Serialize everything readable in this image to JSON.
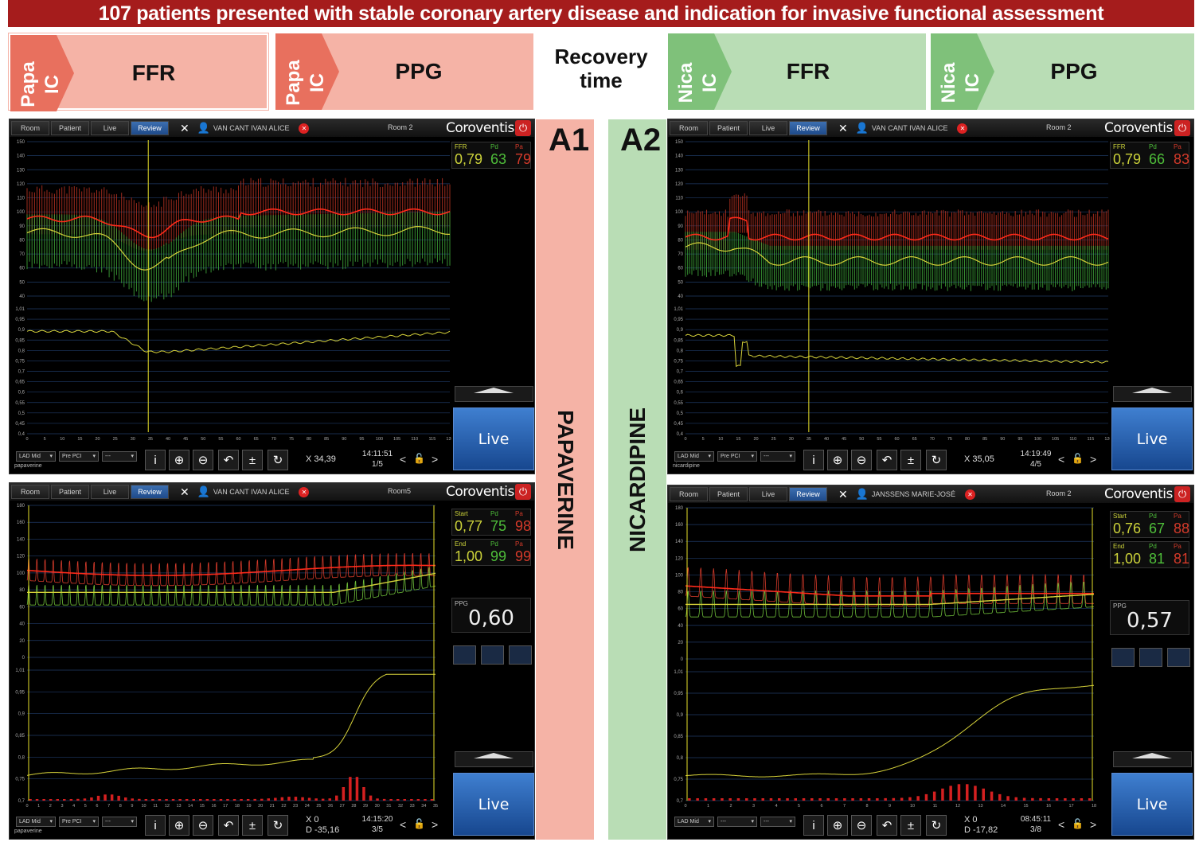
{
  "title": "107 patients presented with stable coronary artery disease and indication for invasive functional assessment",
  "steps": [
    {
      "tag": "Papa IC",
      "label": "FFR"
    },
    {
      "tag": "Papa IC",
      "label": "PPG"
    },
    {
      "tag": "Nica IC",
      "label": "FFR"
    },
    {
      "tag": "Nica IC",
      "label": "PPG"
    }
  ],
  "recovery": {
    "line1": "Recovery",
    "line2": "time"
  },
  "drugs": {
    "left": "PAPAVERINE",
    "right": "NICARDIPINE"
  },
  "panel_labels": {
    "a1": "A1",
    "a2": "A2"
  },
  "colors": {
    "red": "#a51c1c",
    "pink": "#f5b3a6",
    "green": "#b9ddb5",
    "tagred": "#e8705e",
    "taggreen": "#7fc17a",
    "live": "#2a64b5"
  },
  "screens": {
    "s1": {
      "tabs": [
        "Room",
        "Patient",
        "Live",
        "Review"
      ],
      "patient": "VAN CANT IVAN ALICE",
      "room": "Room 2",
      "brand": "Coroventis",
      "read": {
        "h": [
          "FFR",
          "Pd",
          "Pa"
        ],
        "v": [
          "0,79",
          "63",
          "79"
        ]
      },
      "live": "Live",
      "dd": [
        "LAD Mid",
        "Pre PCI",
        "---"
      ],
      "sub": "papaverine",
      "x": "X 34,39",
      "time": "14:11:51",
      "page": "1/5"
    },
    "s2": {
      "tabs": [
        "Room",
        "Patient",
        "Live",
        "Review"
      ],
      "patient": "VAN CANT IVAN ALICE",
      "room": "Room 2",
      "brand": "Coroventis",
      "read": {
        "h": [
          "FFR",
          "Pd",
          "Pa"
        ],
        "v": [
          "0,79",
          "66",
          "83"
        ]
      },
      "live": "Live",
      "dd": [
        "LAD Mid",
        "Pre PCI",
        "---"
      ],
      "sub": "nicardipine",
      "x": "X 35,05",
      "time": "14:19:49",
      "page": "4/5"
    },
    "s3": {
      "tabs": [
        "Room",
        "Patient",
        "Live",
        "Review"
      ],
      "patient": "VAN CANT IVAN ALICE",
      "room": "Room5",
      "brand": "Coroventis",
      "start": {
        "h": [
          "Start",
          "Pd",
          "Pa"
        ],
        "v": [
          "0,77",
          "75",
          "98"
        ]
      },
      "end": {
        "h": [
          "End",
          "Pd",
          "Pa"
        ],
        "v": [
          "1,00",
          "99",
          "99"
        ]
      },
      "ppg_label": "PPG",
      "ppg": "0,60",
      "live": "Live",
      "dd": [
        "LAD Mid",
        "Pre PCI",
        "---"
      ],
      "sub": "papaverine",
      "x": "X 0",
      "d": "D -35,16",
      "time": "14:15:20",
      "page": "3/5"
    },
    "s4": {
      "tabs": [
        "Room",
        "Patient",
        "Live",
        "Review"
      ],
      "patient": "JANSSENS MARIE-JOSÉ",
      "room": "Room 2",
      "brand": "Coroventis",
      "start": {
        "h": [
          "Start",
          "Pd",
          "Pa"
        ],
        "v": [
          "0,76",
          "67",
          "88"
        ]
      },
      "end": {
        "h": [
          "End",
          "Pd",
          "Pa"
        ],
        "v": [
          "1,00",
          "81",
          "81"
        ]
      },
      "ppg_label": "PPG",
      "ppg": "0,57",
      "live": "Live",
      "dd": [
        "LAD Mid",
        "---",
        "---"
      ],
      "sub": "",
      "x": "X 0",
      "d": "D -17,82",
      "time": "08:45:11",
      "page": "3/8"
    }
  },
  "axes": {
    "ffr_top": [
      "150",
      "140",
      "130",
      "120",
      "110",
      "100",
      "90",
      "80",
      "70",
      "60",
      "50",
      "40"
    ],
    "ffr_bot": [
      "1,01",
      "0,95",
      "0,9",
      "0,85",
      "0,8",
      "0,75",
      "0,7",
      "0,65",
      "0,6",
      "0,55",
      "0,5",
      "0,45",
      "0,4"
    ],
    "ffr_x": [
      "0",
      "5",
      "10",
      "15",
      "20",
      "25",
      "30",
      "35",
      "40",
      "45",
      "50",
      "55",
      "60",
      "65",
      "70",
      "75",
      "80",
      "85",
      "90",
      "95",
      "100",
      "105",
      "110",
      "115",
      "120"
    ],
    "ppg_top": [
      "180",
      "160",
      "140",
      "120",
      "100",
      "80",
      "60",
      "40",
      "20",
      "0"
    ],
    "ppg_bot": [
      "1,01",
      "0,95",
      "0,9",
      "0,85",
      "0,8",
      "0,75",
      "0,7"
    ]
  }
}
